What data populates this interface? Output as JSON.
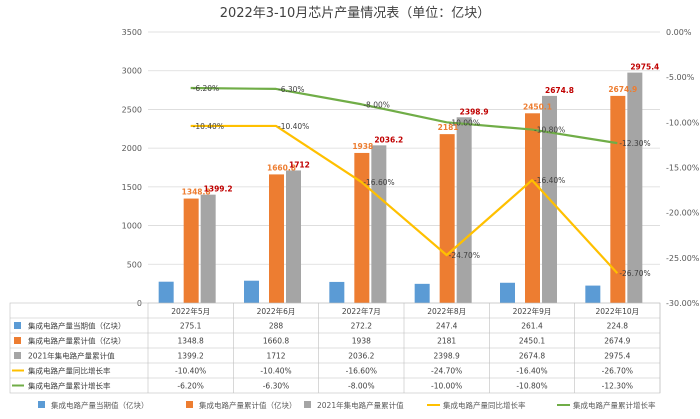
{
  "chart_data": {
    "type": "bar",
    "title": "2022年3-10月芯片产量情况表（单位：亿块）",
    "categories": [
      "2022年5月",
      "2022年6月",
      "2022年7月",
      "2022年8月",
      "2022年9月",
      "2022年10月"
    ],
    "y_left": {
      "min": 0,
      "max": 3500,
      "ticks": [
        "0",
        "500",
        "1000",
        "1500",
        "2000",
        "2500",
        "3000",
        "3500"
      ]
    },
    "y_right": {
      "min": -30,
      "max": 0,
      "ticks": [
        "0.00%",
        "-5.00%",
        "-10.00%",
        "-15.00%",
        "-20.00%",
        "-25.00%",
        "-30.00%"
      ]
    },
    "grid": true,
    "legend_position": "bottom",
    "series": [
      {
        "name": "集成电路产量当期值（亿块）",
        "type": "bar",
        "axis": "left",
        "color": "#5b9bd5",
        "values": [
          275.1,
          288,
          272.2,
          247.4,
          261.4,
          224.8
        ],
        "table_values": [
          "275.1",
          "288",
          "272.2",
          "247.4",
          "261.4",
          "224.8"
        ],
        "data_labels": []
      },
      {
        "name": "集成电路产量累计值（亿块）",
        "type": "bar",
        "axis": "left",
        "color": "#ed7d31",
        "values": [
          1348.8,
          1660.8,
          1938,
          2181,
          2450.1,
          2674.9
        ],
        "table_values": [
          "1348.8",
          "1660.8",
          "1938",
          "2181",
          "2450.1",
          "2674.9"
        ],
        "data_labels": [
          "1348.8",
          "1660.8",
          "1938",
          "2181",
          "2450.1",
          "2674.9"
        ],
        "label_color": "#ed7d31"
      },
      {
        "name": "2021年集电路产量累计值",
        "type": "bar",
        "axis": "left",
        "color": "#a5a5a5",
        "values": [
          1399.2,
          1712,
          2036.2,
          2398.9,
          2674.8,
          2975.4
        ],
        "table_values": [
          "1399.2",
          "1712",
          "2036.2",
          "2398.9",
          "2674.8",
          "2975.4"
        ],
        "data_labels": [
          "1399.2",
          "1712",
          "2036.2",
          "2398.9",
          "2674.8",
          "2975.4"
        ],
        "label_color": "#c00000"
      },
      {
        "name": "集成电路产量同比增长率",
        "type": "line",
        "axis": "right",
        "color": "#ffc000",
        "values": [
          -10.4,
          -10.4,
          -16.6,
          -24.7,
          -16.4,
          -26.7
        ],
        "table_values": [
          "-10.40%",
          "-10.40%",
          "-16.60%",
          "-24.70%",
          "-16.40%",
          "-26.70%"
        ],
        "data_labels": [
          "-10.40%",
          "-10.40%",
          "-16.60%",
          "-24.70%",
          "-16.40%",
          "-26.70%"
        ]
      },
      {
        "name": "集成电路产量累计增长率",
        "type": "line",
        "axis": "right",
        "color": "#70ad47",
        "values": [
          -6.2,
          -6.3,
          -8.0,
          -10.0,
          -10.8,
          -12.3
        ],
        "table_values": [
          "-6.20%",
          "-6.30%",
          "-8.00%",
          "-10.00%",
          "-10.80%",
          "-12.30%"
        ],
        "data_labels": [
          "-6.20%",
          "-6.30%",
          "-8.00%",
          "-10.00%",
          "-10.80%",
          "-12.30%"
        ]
      }
    ],
    "table_row_labels": [
      "集成电路产量当期值（亿块）",
      "集成电路产量累计值（亿块）",
      "2021年集电路产量累计值",
      "集成电路产量同比增长率",
      "集成电路产量累计增长率"
    ],
    "legend_labels": [
      "集成电路产量当期值（亿块）",
      "集成电路产量累计值（亿块）",
      "2021年集电路产量累计值",
      "集成电路产量同比增长率",
      "集成电路产量累计增长率"
    ]
  }
}
